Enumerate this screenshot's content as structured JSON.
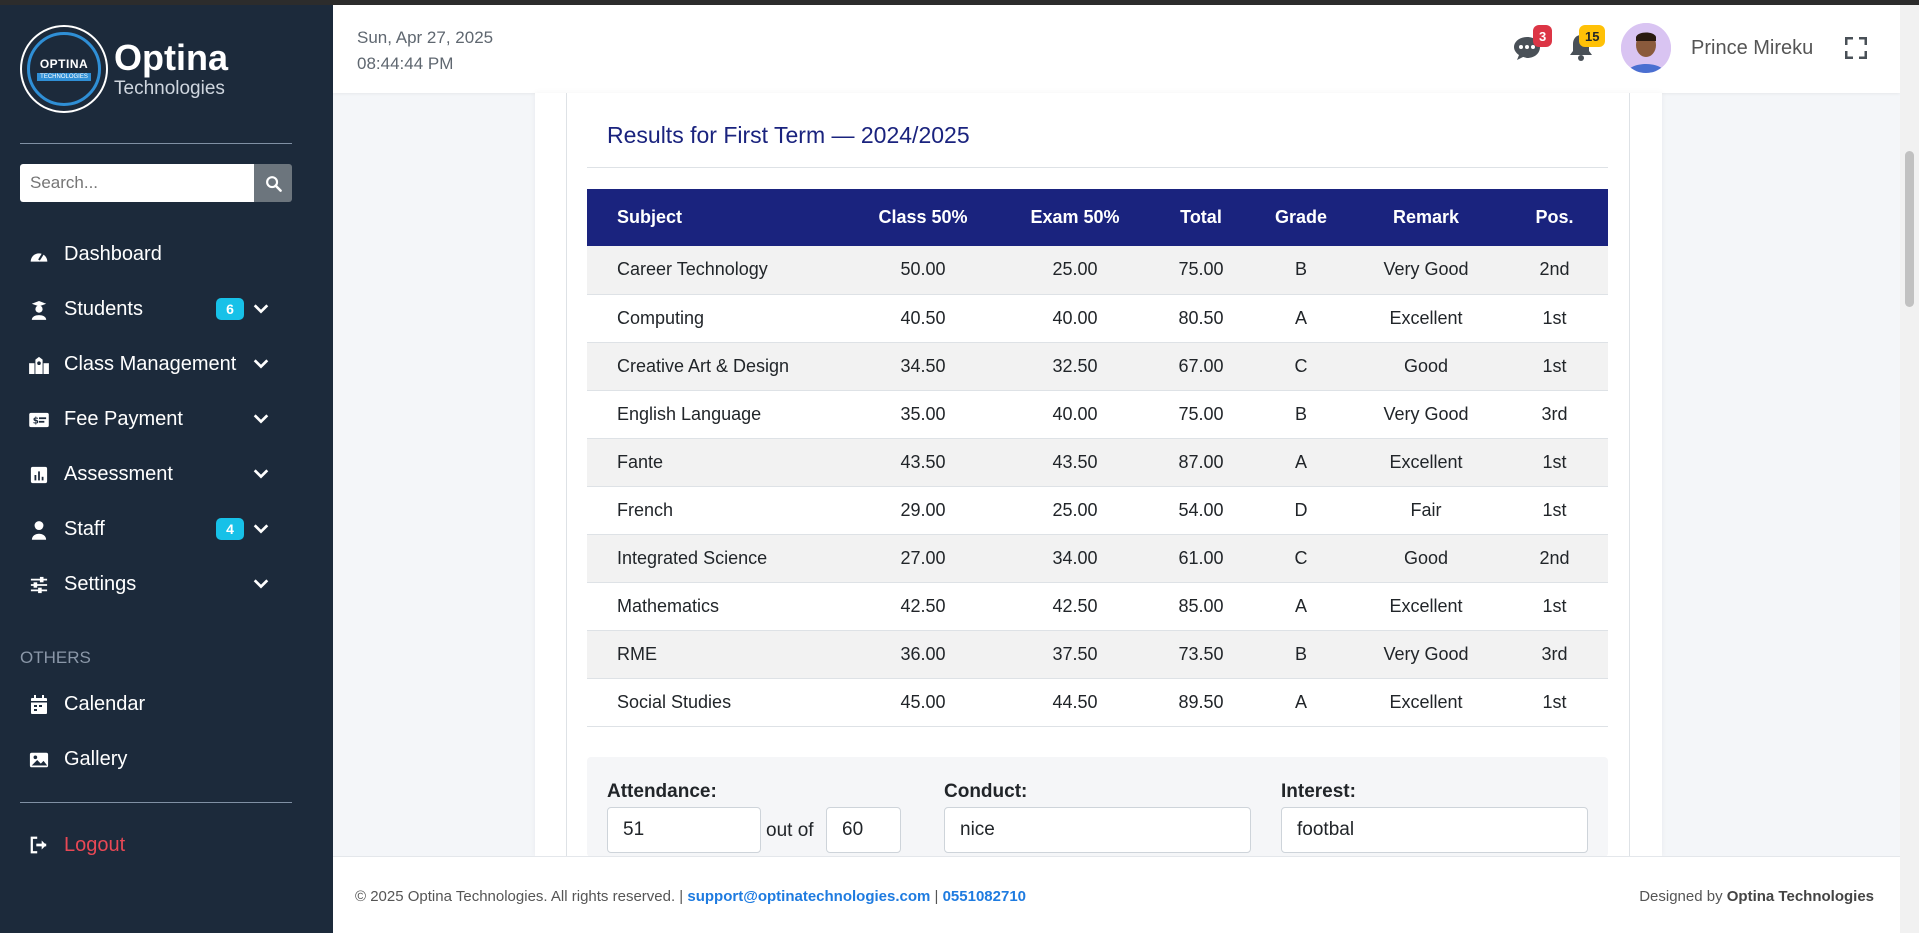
{
  "brand": {
    "name": "Optina",
    "subtitle": "Technologies",
    "logo_text": "OPTINA",
    "logo_sub": "TECHNOLOGIES"
  },
  "search": {
    "placeholder": "Search..."
  },
  "nav": {
    "dashboard": "Dashboard",
    "students": "Students",
    "students_badge": "6",
    "class_management": "Class Management",
    "fee_payment": "Fee Payment",
    "assessment": "Assessment",
    "staff": "Staff",
    "staff_badge": "4",
    "settings": "Settings",
    "others_heading": "OTHERS",
    "calendar": "Calendar",
    "gallery": "Gallery",
    "logout": "Logout"
  },
  "header": {
    "date": "Sun, Apr 27, 2025",
    "time": "08:44:44 PM",
    "messages_count": "3",
    "notifications_count": "15",
    "user_name": "Prince Mireku"
  },
  "results": {
    "title": "Results for First Term — 2024/2025",
    "columns": [
      "Subject",
      "Class 50%",
      "Exam 50%",
      "Total",
      "Grade",
      "Remark",
      "Pos."
    ],
    "rows": [
      [
        "Career Technology",
        "50.00",
        "25.00",
        "75.00",
        "B",
        "Very Good",
        "2nd"
      ],
      [
        "Computing",
        "40.50",
        "40.00",
        "80.50",
        "A",
        "Excellent",
        "1st"
      ],
      [
        "Creative Art & Design",
        "34.50",
        "32.50",
        "67.00",
        "C",
        "Good",
        "1st"
      ],
      [
        "English Language",
        "35.00",
        "40.00",
        "75.00",
        "B",
        "Very Good",
        "3rd"
      ],
      [
        "Fante",
        "43.50",
        "43.50",
        "87.00",
        "A",
        "Excellent",
        "1st"
      ],
      [
        "French",
        "29.00",
        "25.00",
        "54.00",
        "D",
        "Fair",
        "1st"
      ],
      [
        "Integrated Science",
        "27.00",
        "34.00",
        "61.00",
        "C",
        "Good",
        "2nd"
      ],
      [
        "Mathematics",
        "42.50",
        "42.50",
        "85.00",
        "A",
        "Excellent",
        "1st"
      ],
      [
        "RME",
        "36.00",
        "37.50",
        "73.50",
        "B",
        "Very Good",
        "3rd"
      ],
      [
        "Social Studies",
        "45.00",
        "44.50",
        "89.50",
        "A",
        "Excellent",
        "1st"
      ]
    ]
  },
  "extra": {
    "attendance_label": "Attendance:",
    "attendance_value": "51",
    "out_of_label": "out of",
    "attendance_total": "60",
    "conduct_label": "Conduct:",
    "conduct_value": "nice",
    "interest_label": "Interest:",
    "interest_value": "footbal"
  },
  "footer": {
    "copyright": "© 2025 Optina Technologies. All rights reserved. |",
    "email": "support@optinatechnologies.com",
    "separator": "|",
    "phone": "0551082710",
    "designed_by": "Designed by",
    "designer": "Optina Technologies"
  },
  "colors": {
    "sidebar": "#1c2a3b",
    "table_header": "#1a237e",
    "badge_info": "#17c1e8",
    "danger": "#e84855",
    "warning": "#ffc107"
  }
}
